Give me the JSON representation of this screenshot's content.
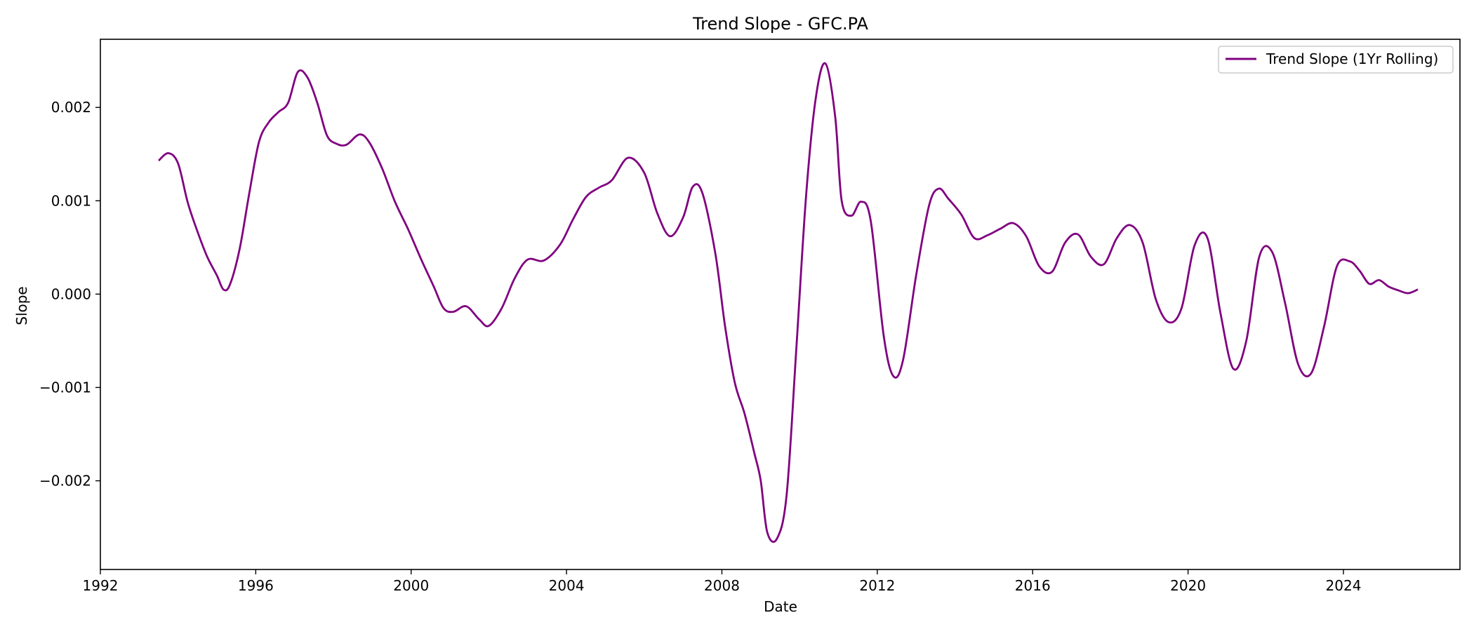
{
  "chart_data": {
    "type": "line",
    "title": "Trend Slope - GFC.PA",
    "xlabel": "Date",
    "ylabel": "Slope",
    "x_ticks": [
      "1992",
      "1996",
      "2000",
      "2004",
      "2008",
      "2012",
      "2016",
      "2020",
      "2024"
    ],
    "y_ticks": [
      "−0.002",
      "−0.001",
      "0.000",
      "0.001",
      "0.002"
    ],
    "y_tick_values": [
      -0.002,
      -0.001,
      0.0,
      0.001,
      0.002
    ],
    "xlim": [
      "1992-01-01",
      "2027-01-01"
    ],
    "ylim": [
      -0.00295,
      0.00273
    ],
    "grid": false,
    "legend_position": "top-right",
    "series": [
      {
        "name": "Trend Slope (1Yr Rolling)",
        "color": "#800080",
        "points": [
          [
            "1993-07-01",
            0.00143
          ],
          [
            "1993-10-01",
            0.00151
          ],
          [
            "1994-01-01",
            0.0014
          ],
          [
            "1994-04-01",
            0.00098
          ],
          [
            "1994-07-01",
            0.00067
          ],
          [
            "1994-10-01",
            0.0004
          ],
          [
            "1995-01-01",
            0.0002
          ],
          [
            "1995-03-01",
            5e-05
          ],
          [
            "1995-05-01",
            0.0001
          ],
          [
            "1995-08-01",
            0.00048
          ],
          [
            "1995-11-01",
            0.00108
          ],
          [
            "1996-02-01",
            0.00163
          ],
          [
            "1996-05-01",
            0.00184
          ],
          [
            "1996-08-01",
            0.00195
          ],
          [
            "1996-11-01",
            0.00205
          ],
          [
            "1997-02-01",
            0.00238
          ],
          [
            "1997-05-01",
            0.00232
          ],
          [
            "1997-08-01",
            0.00205
          ],
          [
            "1997-11-01",
            0.0017
          ],
          [
            "1998-02-01",
            0.00161
          ],
          [
            "1998-05-01",
            0.0016
          ],
          [
            "1998-09-01",
            0.00171
          ],
          [
            "1998-12-01",
            0.00163
          ],
          [
            "1999-04-01",
            0.00135
          ],
          [
            "1999-08-01",
            0.00099
          ],
          [
            "1999-12-01",
            0.0007
          ],
          [
            "2000-04-01",
            0.00038
          ],
          [
            "2000-08-01",
            8e-05
          ],
          [
            "2000-11-01",
            -0.00015
          ],
          [
            "2001-02-01",
            -0.00019
          ],
          [
            "2001-06-01",
            -0.00013
          ],
          [
            "2001-10-01",
            -0.00027
          ],
          [
            "2002-01-01",
            -0.00034
          ],
          [
            "2002-05-01",
            -0.00015
          ],
          [
            "2002-09-01",
            0.00017
          ],
          [
            "2003-01-01",
            0.00037
          ],
          [
            "2003-06-01",
            0.00036
          ],
          [
            "2003-11-01",
            0.00053
          ],
          [
            "2004-03-01",
            0.0008
          ],
          [
            "2004-07-01",
            0.00104
          ],
          [
            "2004-11-01",
            0.00114
          ],
          [
            "2005-03-01",
            0.00122
          ],
          [
            "2005-08-01",
            0.00146
          ],
          [
            "2006-01-01",
            0.0013
          ],
          [
            "2006-05-01",
            0.00087
          ],
          [
            "2006-09-01",
            0.00062
          ],
          [
            "2007-01-01",
            0.00082
          ],
          [
            "2007-04-01",
            0.00115
          ],
          [
            "2007-07-01",
            0.00108
          ],
          [
            "2007-11-01",
            0.00043
          ],
          [
            "2008-02-01",
            -0.00035
          ],
          [
            "2008-05-01",
            -0.00095
          ],
          [
            "2008-08-01",
            -0.00128
          ],
          [
            "2008-11-01",
            -0.0017
          ],
          [
            "2009-01-01",
            -0.002
          ],
          [
            "2009-03-01",
            -0.00255
          ],
          [
            "2009-06-01",
            -0.00262
          ],
          [
            "2009-09-01",
            -0.00215
          ],
          [
            "2009-12-01",
            -0.00058
          ],
          [
            "2010-03-01",
            0.00105
          ],
          [
            "2010-06-01",
            0.0021
          ],
          [
            "2010-09-01",
            0.00247
          ],
          [
            "2010-12-01",
            0.0019
          ],
          [
            "2011-02-01",
            0.001
          ],
          [
            "2011-05-01",
            0.00084
          ],
          [
            "2011-08-01",
            0.00099
          ],
          [
            "2011-11-01",
            0.00078
          ],
          [
            "2012-03-01",
            -0.00045
          ],
          [
            "2012-06-01",
            -0.00088
          ],
          [
            "2012-09-01",
            -0.0007
          ],
          [
            "2013-01-01",
            0.0002
          ],
          [
            "2013-05-01",
            0.00095
          ],
          [
            "2013-08-01",
            0.00113
          ],
          [
            "2013-11-01",
            0.00102
          ],
          [
            "2014-03-01",
            0.00085
          ],
          [
            "2014-07-01",
            0.0006
          ],
          [
            "2014-11-01",
            0.00063
          ],
          [
            "2015-03-01",
            0.0007
          ],
          [
            "2015-07-01",
            0.00076
          ],
          [
            "2015-11-01",
            0.00062
          ],
          [
            "2016-03-01",
            0.0003
          ],
          [
            "2016-07-01",
            0.00024
          ],
          [
            "2016-11-01",
            0.00055
          ],
          [
            "2017-03-01",
            0.00064
          ],
          [
            "2017-07-01",
            0.0004
          ],
          [
            "2017-11-01",
            0.00032
          ],
          [
            "2018-03-01",
            0.0006
          ],
          [
            "2018-07-01",
            0.00074
          ],
          [
            "2018-11-01",
            0.00055
          ],
          [
            "2019-03-01",
            -5e-05
          ],
          [
            "2019-07-01",
            -0.0003
          ],
          [
            "2019-11-01",
            -0.00015
          ],
          [
            "2020-03-01",
            0.00052
          ],
          [
            "2020-07-01",
            0.0006
          ],
          [
            "2020-11-01",
            -0.0002
          ],
          [
            "2021-03-01",
            -0.0008
          ],
          [
            "2021-07-01",
            -0.0005
          ],
          [
            "2021-11-01",
            0.0004
          ],
          [
            "2022-03-01",
            0.00045
          ],
          [
            "2022-07-01",
            -0.0001
          ],
          [
            "2022-11-01",
            -0.00075
          ],
          [
            "2023-03-01",
            -0.00085
          ],
          [
            "2023-07-01",
            -0.00035
          ],
          [
            "2023-11-01",
            0.0003
          ],
          [
            "2024-03-01",
            0.00035
          ],
          [
            "2024-06-01",
            0.00025
          ],
          [
            "2024-09-01",
            0.00011
          ],
          [
            "2024-12-01",
            0.00015
          ],
          [
            "2025-03-01",
            8e-05
          ],
          [
            "2025-06-01",
            4e-05
          ],
          [
            "2025-09-01",
            1e-05
          ],
          [
            "2025-12-01",
            5e-05
          ]
        ]
      }
    ]
  }
}
